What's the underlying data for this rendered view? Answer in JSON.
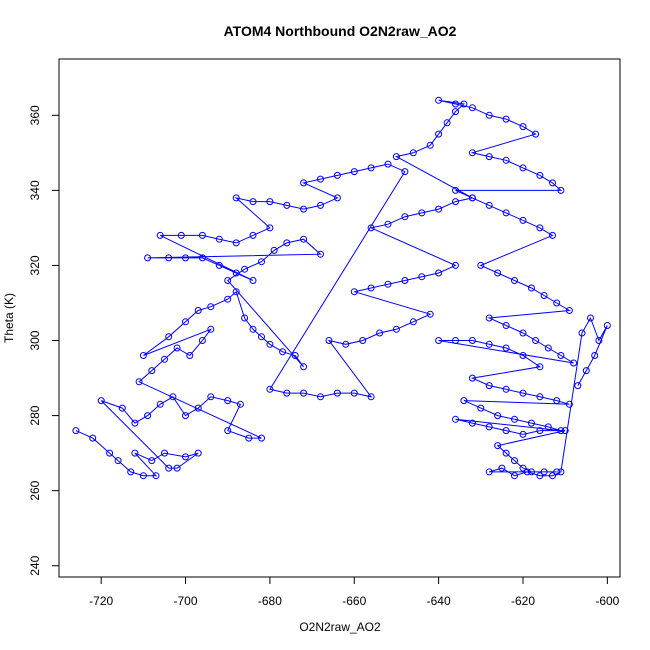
{
  "chart_data": {
    "type": "scatter",
    "title": "ATOM4 Northbound O2N2raw_AO2",
    "xlabel": "O2N2raw_AO2",
    "ylabel": "Theta (K)",
    "xlim": [
      -730,
      -597
    ],
    "ylim": [
      237,
      375
    ],
    "xticks": [
      -720,
      -700,
      -680,
      -660,
      -640,
      -620,
      -600
    ],
    "yticks": [
      240,
      260,
      280,
      300,
      320,
      340,
      360
    ],
    "grid": false,
    "marker": "open-circle",
    "connected_by_lines": true,
    "color": "#0000ff",
    "series": [
      {
        "values": [
          [
            -726,
            276
          ],
          [
            -722,
            274
          ],
          [
            -718,
            270
          ],
          [
            -716,
            268
          ],
          [
            -713,
            265
          ],
          [
            -710,
            264
          ],
          [
            -707,
            264
          ],
          [
            -712,
            270
          ],
          [
            -708,
            268
          ],
          [
            -705,
            270
          ],
          [
            -700,
            269
          ],
          [
            -697,
            270
          ],
          [
            -702,
            266
          ],
          [
            -704,
            266
          ],
          [
            -720,
            284
          ],
          [
            -715,
            282
          ],
          [
            -712,
            278
          ],
          [
            -709,
            280
          ],
          [
            -706,
            283
          ],
          [
            -703,
            285
          ],
          [
            -700,
            280
          ],
          [
            -697,
            282
          ],
          [
            -694,
            285
          ],
          [
            -690,
            284
          ],
          [
            -687,
            283
          ],
          [
            -690,
            276
          ],
          [
            -685,
            274
          ],
          [
            -682,
            274
          ],
          [
            -711,
            289
          ],
          [
            -708,
            292
          ],
          [
            -705,
            295
          ],
          [
            -702,
            298
          ],
          [
            -699,
            296
          ],
          [
            -696,
            300
          ],
          [
            -694,
            303
          ],
          [
            -710,
            296
          ],
          [
            -704,
            301
          ],
          [
            -700,
            305
          ],
          [
            -697,
            308
          ],
          [
            -694,
            309
          ],
          [
            -690,
            311
          ],
          [
            -688,
            313
          ],
          [
            -686,
            306
          ],
          [
            -684,
            303
          ],
          [
            -682,
            301
          ],
          [
            -680,
            299
          ],
          [
            -677,
            297
          ],
          [
            -674,
            296
          ],
          [
            -672,
            293
          ],
          [
            -690,
            316
          ],
          [
            -686,
            319
          ],
          [
            -682,
            321
          ],
          [
            -679,
            324
          ],
          [
            -676,
            326
          ],
          [
            -672,
            327
          ],
          [
            -668,
            323
          ],
          [
            -709,
            322
          ],
          [
            -704,
            322
          ],
          [
            -700,
            322
          ],
          [
            -696,
            322
          ],
          [
            -692,
            320
          ],
          [
            -688,
            318
          ],
          [
            -684,
            316
          ],
          [
            -706,
            328
          ],
          [
            -701,
            328
          ],
          [
            -696,
            328
          ],
          [
            -692,
            327
          ],
          [
            -688,
            326
          ],
          [
            -684,
            328
          ],
          [
            -680,
            330
          ],
          [
            -688,
            338
          ],
          [
            -684,
            337
          ],
          [
            -680,
            337
          ],
          [
            -676,
            336
          ],
          [
            -672,
            335
          ],
          [
            -668,
            336
          ],
          [
            -664,
            338
          ],
          [
            -672,
            342
          ],
          [
            -668,
            343
          ],
          [
            -664,
            344
          ],
          [
            -660,
            345
          ],
          [
            -656,
            346
          ],
          [
            -652,
            347
          ],
          [
            -648,
            345
          ],
          [
            -680,
            287
          ],
          [
            -676,
            286
          ],
          [
            -672,
            286
          ],
          [
            -668,
            285
          ],
          [
            -664,
            286
          ],
          [
            -660,
            286
          ],
          [
            -656,
            285
          ],
          [
            -666,
            300
          ],
          [
            -662,
            299
          ],
          [
            -658,
            300
          ],
          [
            -654,
            302
          ],
          [
            -650,
            303
          ],
          [
            -646,
            305
          ],
          [
            -642,
            307
          ],
          [
            -660,
            313
          ],
          [
            -656,
            314
          ],
          [
            -652,
            315
          ],
          [
            -648,
            316
          ],
          [
            -644,
            317
          ],
          [
            -640,
            318
          ],
          [
            -636,
            320
          ],
          [
            -656,
            330
          ],
          [
            -652,
            331
          ],
          [
            -648,
            333
          ],
          [
            -644,
            334
          ],
          [
            -640,
            335
          ],
          [
            -636,
            337
          ],
          [
            -632,
            338
          ],
          [
            -650,
            349
          ],
          [
            -646,
            350
          ],
          [
            -642,
            352
          ],
          [
            -640,
            355
          ],
          [
            -638,
            358
          ],
          [
            -636,
            361
          ],
          [
            -634,
            363
          ],
          [
            -640,
            364
          ],
          [
            -636,
            363
          ],
          [
            -632,
            362
          ],
          [
            -628,
            360
          ],
          [
            -624,
            359
          ],
          [
            -620,
            357
          ],
          [
            -617,
            355
          ],
          [
            -632,
            350
          ],
          [
            -628,
            349
          ],
          [
            -624,
            348
          ],
          [
            -620,
            346
          ],
          [
            -616,
            344
          ],
          [
            -613,
            342
          ],
          [
            -611,
            340
          ],
          [
            -636,
            340
          ],
          [
            -632,
            338
          ],
          [
            -628,
            336
          ],
          [
            -624,
            334
          ],
          [
            -620,
            332
          ],
          [
            -616,
            330
          ],
          [
            -613,
            328
          ],
          [
            -630,
            320
          ],
          [
            -626,
            318
          ],
          [
            -622,
            316
          ],
          [
            -618,
            314
          ],
          [
            -615,
            312
          ],
          [
            -612,
            310
          ],
          [
            -609,
            308
          ],
          [
            -628,
            306
          ],
          [
            -624,
            304
          ],
          [
            -620,
            302
          ],
          [
            -617,
            300
          ],
          [
            -614,
            298
          ],
          [
            -611,
            296
          ],
          [
            -608,
            294
          ],
          [
            -640,
            300
          ],
          [
            -636,
            300
          ],
          [
            -632,
            300
          ],
          [
            -628,
            299
          ],
          [
            -624,
            298
          ],
          [
            -620,
            296
          ],
          [
            -616,
            293
          ],
          [
            -632,
            290
          ],
          [
            -628,
            288
          ],
          [
            -624,
            287
          ],
          [
            -620,
            286
          ],
          [
            -616,
            285
          ],
          [
            -612,
            284
          ],
          [
            -609,
            283
          ],
          [
            -634,
            284
          ],
          [
            -630,
            282
          ],
          [
            -626,
            280
          ],
          [
            -622,
            279
          ],
          [
            -618,
            278
          ],
          [
            -614,
            277
          ],
          [
            -611,
            276
          ],
          [
            -636,
            279
          ],
          [
            -632,
            278
          ],
          [
            -628,
            277
          ],
          [
            -624,
            276
          ],
          [
            -620,
            275
          ],
          [
            -616,
            276
          ],
          [
            -610,
            276
          ],
          [
            -626,
            272
          ],
          [
            -624,
            270
          ],
          [
            -622,
            268
          ],
          [
            -620,
            266
          ],
          [
            -618,
            265
          ],
          [
            -615,
            265
          ],
          [
            -612,
            265
          ],
          [
            -628,
            265
          ],
          [
            -625,
            266
          ],
          [
            -622,
            264
          ],
          [
            -619,
            265
          ],
          [
            -616,
            264
          ],
          [
            -613,
            264
          ],
          [
            -611,
            265
          ],
          [
            -606,
            302
          ],
          [
            -604,
            306
          ],
          [
            -602,
            300
          ],
          [
            -600,
            304
          ],
          [
            -603,
            296
          ],
          [
            -605,
            292
          ],
          [
            -607,
            288
          ]
        ]
      }
    ]
  }
}
